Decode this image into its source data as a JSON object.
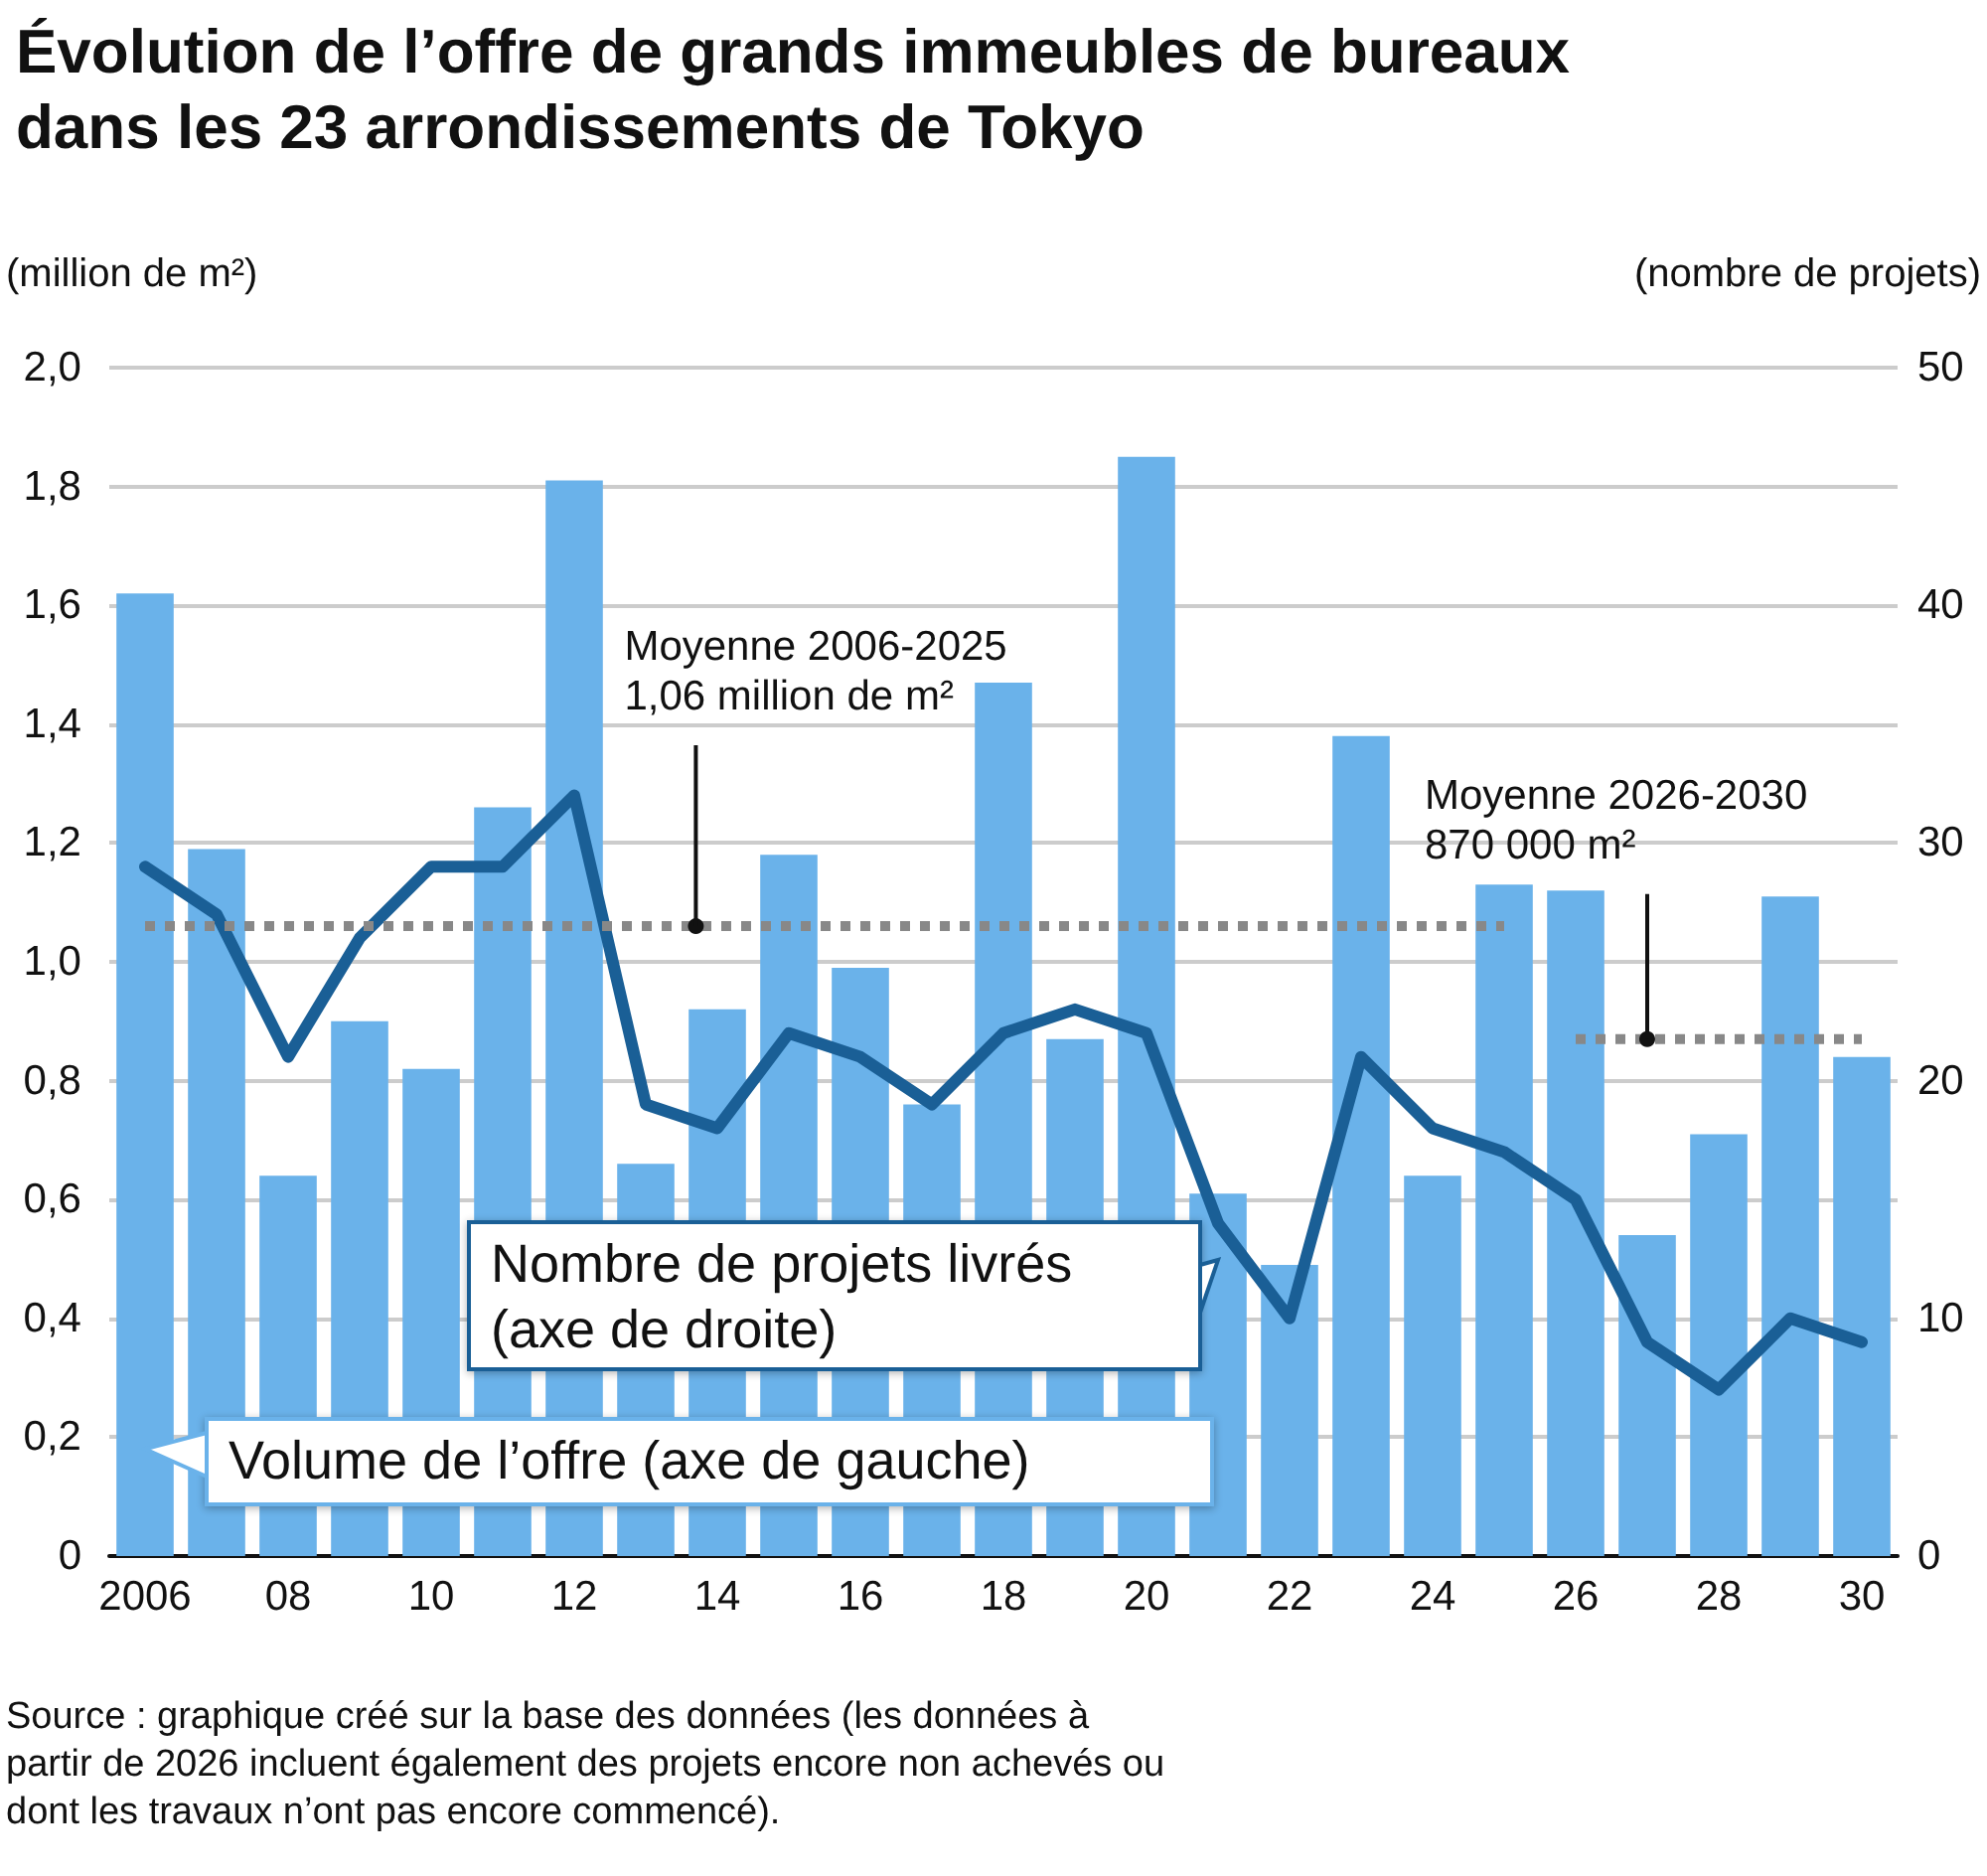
{
  "chart_data": {
    "type": "bar",
    "title": "Évolution de l’offre de grands immeubles de bureaux dans les 23 arrondissements de Tokyo",
    "ylabel": "(million de m²)",
    "y2label": "(nombre de projets)",
    "x": [
      2006,
      2007,
      2008,
      2009,
      2010,
      2011,
      2012,
      2013,
      2014,
      2015,
      2016,
      2017,
      2018,
      2019,
      2020,
      2021,
      2022,
      2023,
      2024,
      2025,
      2026,
      2027,
      2028,
      2029,
      2030
    ],
    "xlim": [
      2005.5,
      2030.5
    ],
    "xticks": [
      {
        "value": 2006,
        "label": "2006"
      },
      {
        "value": 2008,
        "label": "08"
      },
      {
        "value": 2010,
        "label": "10"
      },
      {
        "value": 2012,
        "label": "12"
      },
      {
        "value": 2014,
        "label": "14"
      },
      {
        "value": 2016,
        "label": "16"
      },
      {
        "value": 2018,
        "label": "18"
      },
      {
        "value": 2020,
        "label": "20"
      },
      {
        "value": 2022,
        "label": "22"
      },
      {
        "value": 2024,
        "label": "24"
      },
      {
        "value": 2026,
        "label": "26"
      },
      {
        "value": 2028,
        "label": "28"
      },
      {
        "value": 2030,
        "label": "30"
      }
    ],
    "ylim": [
      0,
      2
    ],
    "yticks": [
      0,
      {
        "value": 0.2,
        "label": "0,2"
      },
      {
        "value": 0.4,
        "label": "0,4"
      },
      {
        "value": 0.6,
        "label": "0,6"
      },
      {
        "value": 0.8,
        "label": "0,8"
      },
      {
        "value": 1,
        "label": "1,0"
      },
      {
        "value": 1.2,
        "label": "1,2"
      },
      {
        "value": 1.4,
        "label": "1,4"
      },
      {
        "value": 1.6,
        "label": "1,6"
      },
      {
        "value": 1.8,
        "label": "1,8"
      },
      {
        "value": 2,
        "label": "2,0"
      }
    ],
    "y2lim": [
      0,
      50
    ],
    "y2ticks": [
      0,
      10,
      20,
      30,
      40,
      50
    ],
    "series": [
      {
        "name": "Volume de l’offre (axe de gauche)",
        "color": "#6ab2ea",
        "values": [
          1.62,
          1.19,
          0.64,
          0.9,
          0.82,
          1.26,
          1.81,
          0.66,
          0.92,
          1.18,
          0.99,
          0.76,
          1.47,
          0.87,
          1.85,
          0.61,
          0.49,
          1.38,
          0.64,
          1.13,
          1.12,
          0.54,
          0.71,
          1.11,
          0.84
        ]
      },
      {
        "name": "Nombre de projets livrés (axe de droite)",
        "type": "line",
        "axis": "y2",
        "color": "#1a5f96",
        "values": [
          29,
          27,
          21,
          26,
          29,
          29,
          32,
          19,
          18,
          22,
          21,
          19,
          22,
          23,
          22,
          14,
          10,
          21,
          18,
          17,
          15,
          9,
          7,
          10,
          9
        ]
      },
      {
        "type": "line",
        "x": [
          2006,
          2025
        ],
        "values": [
          1.06,
          1.06
        ],
        "color": "#888888",
        "line_style": "dotted"
      },
      {
        "type": "line",
        "x": [
          2026,
          2030
        ],
        "values": [
          0.87,
          0.87
        ],
        "color": "#888888",
        "line_style": "dotted"
      }
    ],
    "annotations": [
      {
        "text": "Moyenne 2006-2025\n1,06 million de m²",
        "x": 2013.7,
        "y": 1.06
      },
      {
        "text": "Moyenne 2026-2030\n870 000 m²",
        "x": 2027,
        "y": 0.87
      },
      "Source : graphique créé sur la base des données (les données à partir de 2026 incluent également des projets encore non achevés ou dont les travaux n’ont pas encore commencé)."
    ],
    "grid": "y",
    "legend": "bottom left",
    "marker": "none",
    "line_style": "solid"
  }
}
